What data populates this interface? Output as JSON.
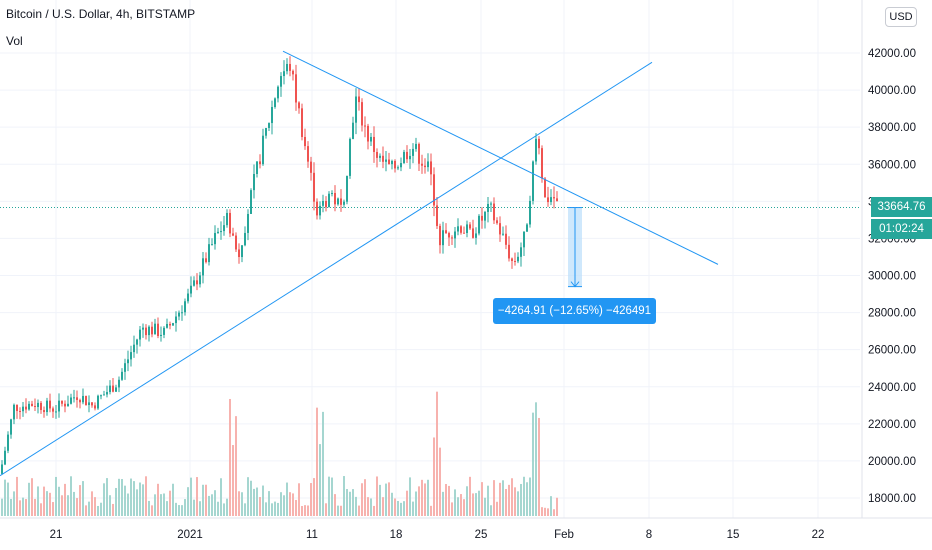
{
  "header": {
    "title": "Bitcoin / U.S. Dollar, 4h, BITSTAMP",
    "vol_label": "Vol"
  },
  "currency_button": "USD",
  "price_axis": {
    "ticks": [
      "18000.00",
      "20000.00",
      "22000.00",
      "24000.00",
      "26000.00",
      "28000.00",
      "30000.00",
      "32000.00",
      "34000.00",
      "36000.00",
      "38000.00",
      "40000.00",
      "42000.00"
    ],
    "last_price": "33664.76",
    "countdown": "01:02:24"
  },
  "time_axis": {
    "ticks": [
      "21",
      "2021",
      "11",
      "18",
      "25",
      "Feb",
      "8",
      "15",
      "22"
    ]
  },
  "measure": {
    "label": "−4264.91 (−12.65%) −426491",
    "from_price": 33665,
    "to_price": 29400
  },
  "colors": {
    "up": "#26a69a",
    "down": "#ef5350",
    "trendline": "#2196f3",
    "measure_fill": "#bbdefb"
  },
  "chart_data": {
    "type": "candlestick",
    "title": "Bitcoin / U.S. Dollar, 4h, BITSTAMP",
    "ylim": [
      17000,
      44000
    ],
    "x_ticks": [
      "21",
      "2021",
      "11",
      "18",
      "25",
      "Feb",
      "8",
      "15",
      "22"
    ],
    "last_price": 33664.76,
    "waypoints": [
      {
        "date": "Dec 16",
        "price": 19300
      },
      {
        "date": "Dec 17",
        "price": 22900
      },
      {
        "date": "Dec 19",
        "price": 23100
      },
      {
        "date": "Dec 21",
        "price": 22800
      },
      {
        "date": "Dec 23",
        "price": 23600
      },
      {
        "date": "Dec 24",
        "price": 23000
      },
      {
        "date": "Dec 26",
        "price": 24300
      },
      {
        "date": "Dec 27",
        "price": 27200
      },
      {
        "date": "Dec 29",
        "price": 26900
      },
      {
        "date": "Dec 31",
        "price": 29000
      },
      {
        "date": "Jan 2",
        "price": 32000
      },
      {
        "date": "Jan 3",
        "price": 33100
      },
      {
        "date": "Jan 4",
        "price": 31000
      },
      {
        "date": "Jan 6",
        "price": 36000
      },
      {
        "date": "Jan 8",
        "price": 40800
      },
      {
        "date": "Jan 9",
        "price": 41300
      },
      {
        "date": "Jan 10",
        "price": 38500
      },
      {
        "date": "Jan 11",
        "price": 33200
      },
      {
        "date": "Jan 12",
        "price": 34500
      },
      {
        "date": "Jan 13",
        "price": 33500
      },
      {
        "date": "Jan 14",
        "price": 39600
      },
      {
        "date": "Jan 15",
        "price": 37500
      },
      {
        "date": "Jan 16",
        "price": 36200
      },
      {
        "date": "Jan 17",
        "price": 35700
      },
      {
        "date": "Jan 19",
        "price": 37000
      },
      {
        "date": "Jan 20",
        "price": 35600
      },
      {
        "date": "Jan 21",
        "price": 32000
      },
      {
        "date": "Jan 22",
        "price": 32300
      },
      {
        "date": "Jan 23",
        "price": 32700
      },
      {
        "date": "Jan 24",
        "price": 32200
      },
      {
        "date": "Jan 25",
        "price": 33600
      },
      {
        "date": "Jan 26",
        "price": 31800
      },
      {
        "date": "Jan 27",
        "price": 30600
      },
      {
        "date": "Jan 28",
        "price": 32100
      },
      {
        "date": "Jan 29",
        "price": 37800
      },
      {
        "date": "Jan 29b",
        "price": 34100
      },
      {
        "date": "Jan 30",
        "price": 34300
      },
      {
        "date": "Jan 31",
        "price": 33700
      }
    ],
    "volume_series": "red/green bars at bottom; spikes around Jan 4, Jan 11, Jan 21 and Jan 29"
  }
}
